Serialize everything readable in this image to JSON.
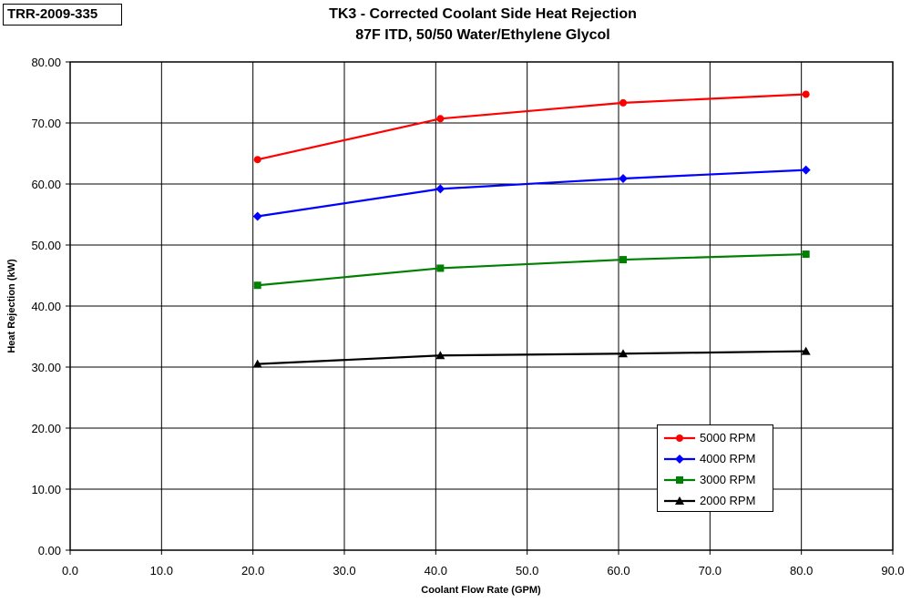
{
  "report_id": "TRR-2009-335",
  "chart_data": {
    "type": "line",
    "title": "TK3 - Corrected Coolant Side Heat Rejection",
    "subtitle": "87F ITD, 50/50 Water/Ethylene Glycol",
    "xlabel": "Coolant Flow Rate (GPM)",
    "ylabel": "Heat Rejection (kW)",
    "xlim": [
      0,
      90
    ],
    "ylim": [
      0,
      80
    ],
    "x_ticks": [
      "0.0",
      "10.0",
      "20.0",
      "30.0",
      "40.0",
      "50.0",
      "60.0",
      "70.0",
      "80.0",
      "90.0"
    ],
    "y_ticks": [
      "0.00",
      "10.00",
      "20.00",
      "30.00",
      "40.00",
      "50.00",
      "60.00",
      "70.00",
      "80.00"
    ],
    "grid": true,
    "legend_position": "bottom-right",
    "series": [
      {
        "name": "5000 RPM",
        "color": "#ff0000",
        "marker": "circle",
        "x": [
          20.5,
          40.5,
          60.5,
          80.5
        ],
        "y": [
          64.0,
          70.7,
          73.3,
          74.7
        ]
      },
      {
        "name": "4000 RPM",
        "color": "#0000ff",
        "marker": "diamond",
        "x": [
          20.5,
          40.5,
          60.5,
          80.5
        ],
        "y": [
          54.7,
          59.2,
          60.9,
          62.3
        ]
      },
      {
        "name": "3000 RPM",
        "color": "#008000",
        "marker": "square",
        "x": [
          20.5,
          40.5,
          60.5,
          80.5
        ],
        "y": [
          43.4,
          46.2,
          47.6,
          48.5
        ]
      },
      {
        "name": "2000 RPM",
        "color": "#000000",
        "marker": "triangle",
        "x": [
          20.5,
          40.5,
          60.5,
          80.5
        ],
        "y": [
          30.5,
          31.9,
          32.2,
          32.6
        ]
      }
    ]
  }
}
